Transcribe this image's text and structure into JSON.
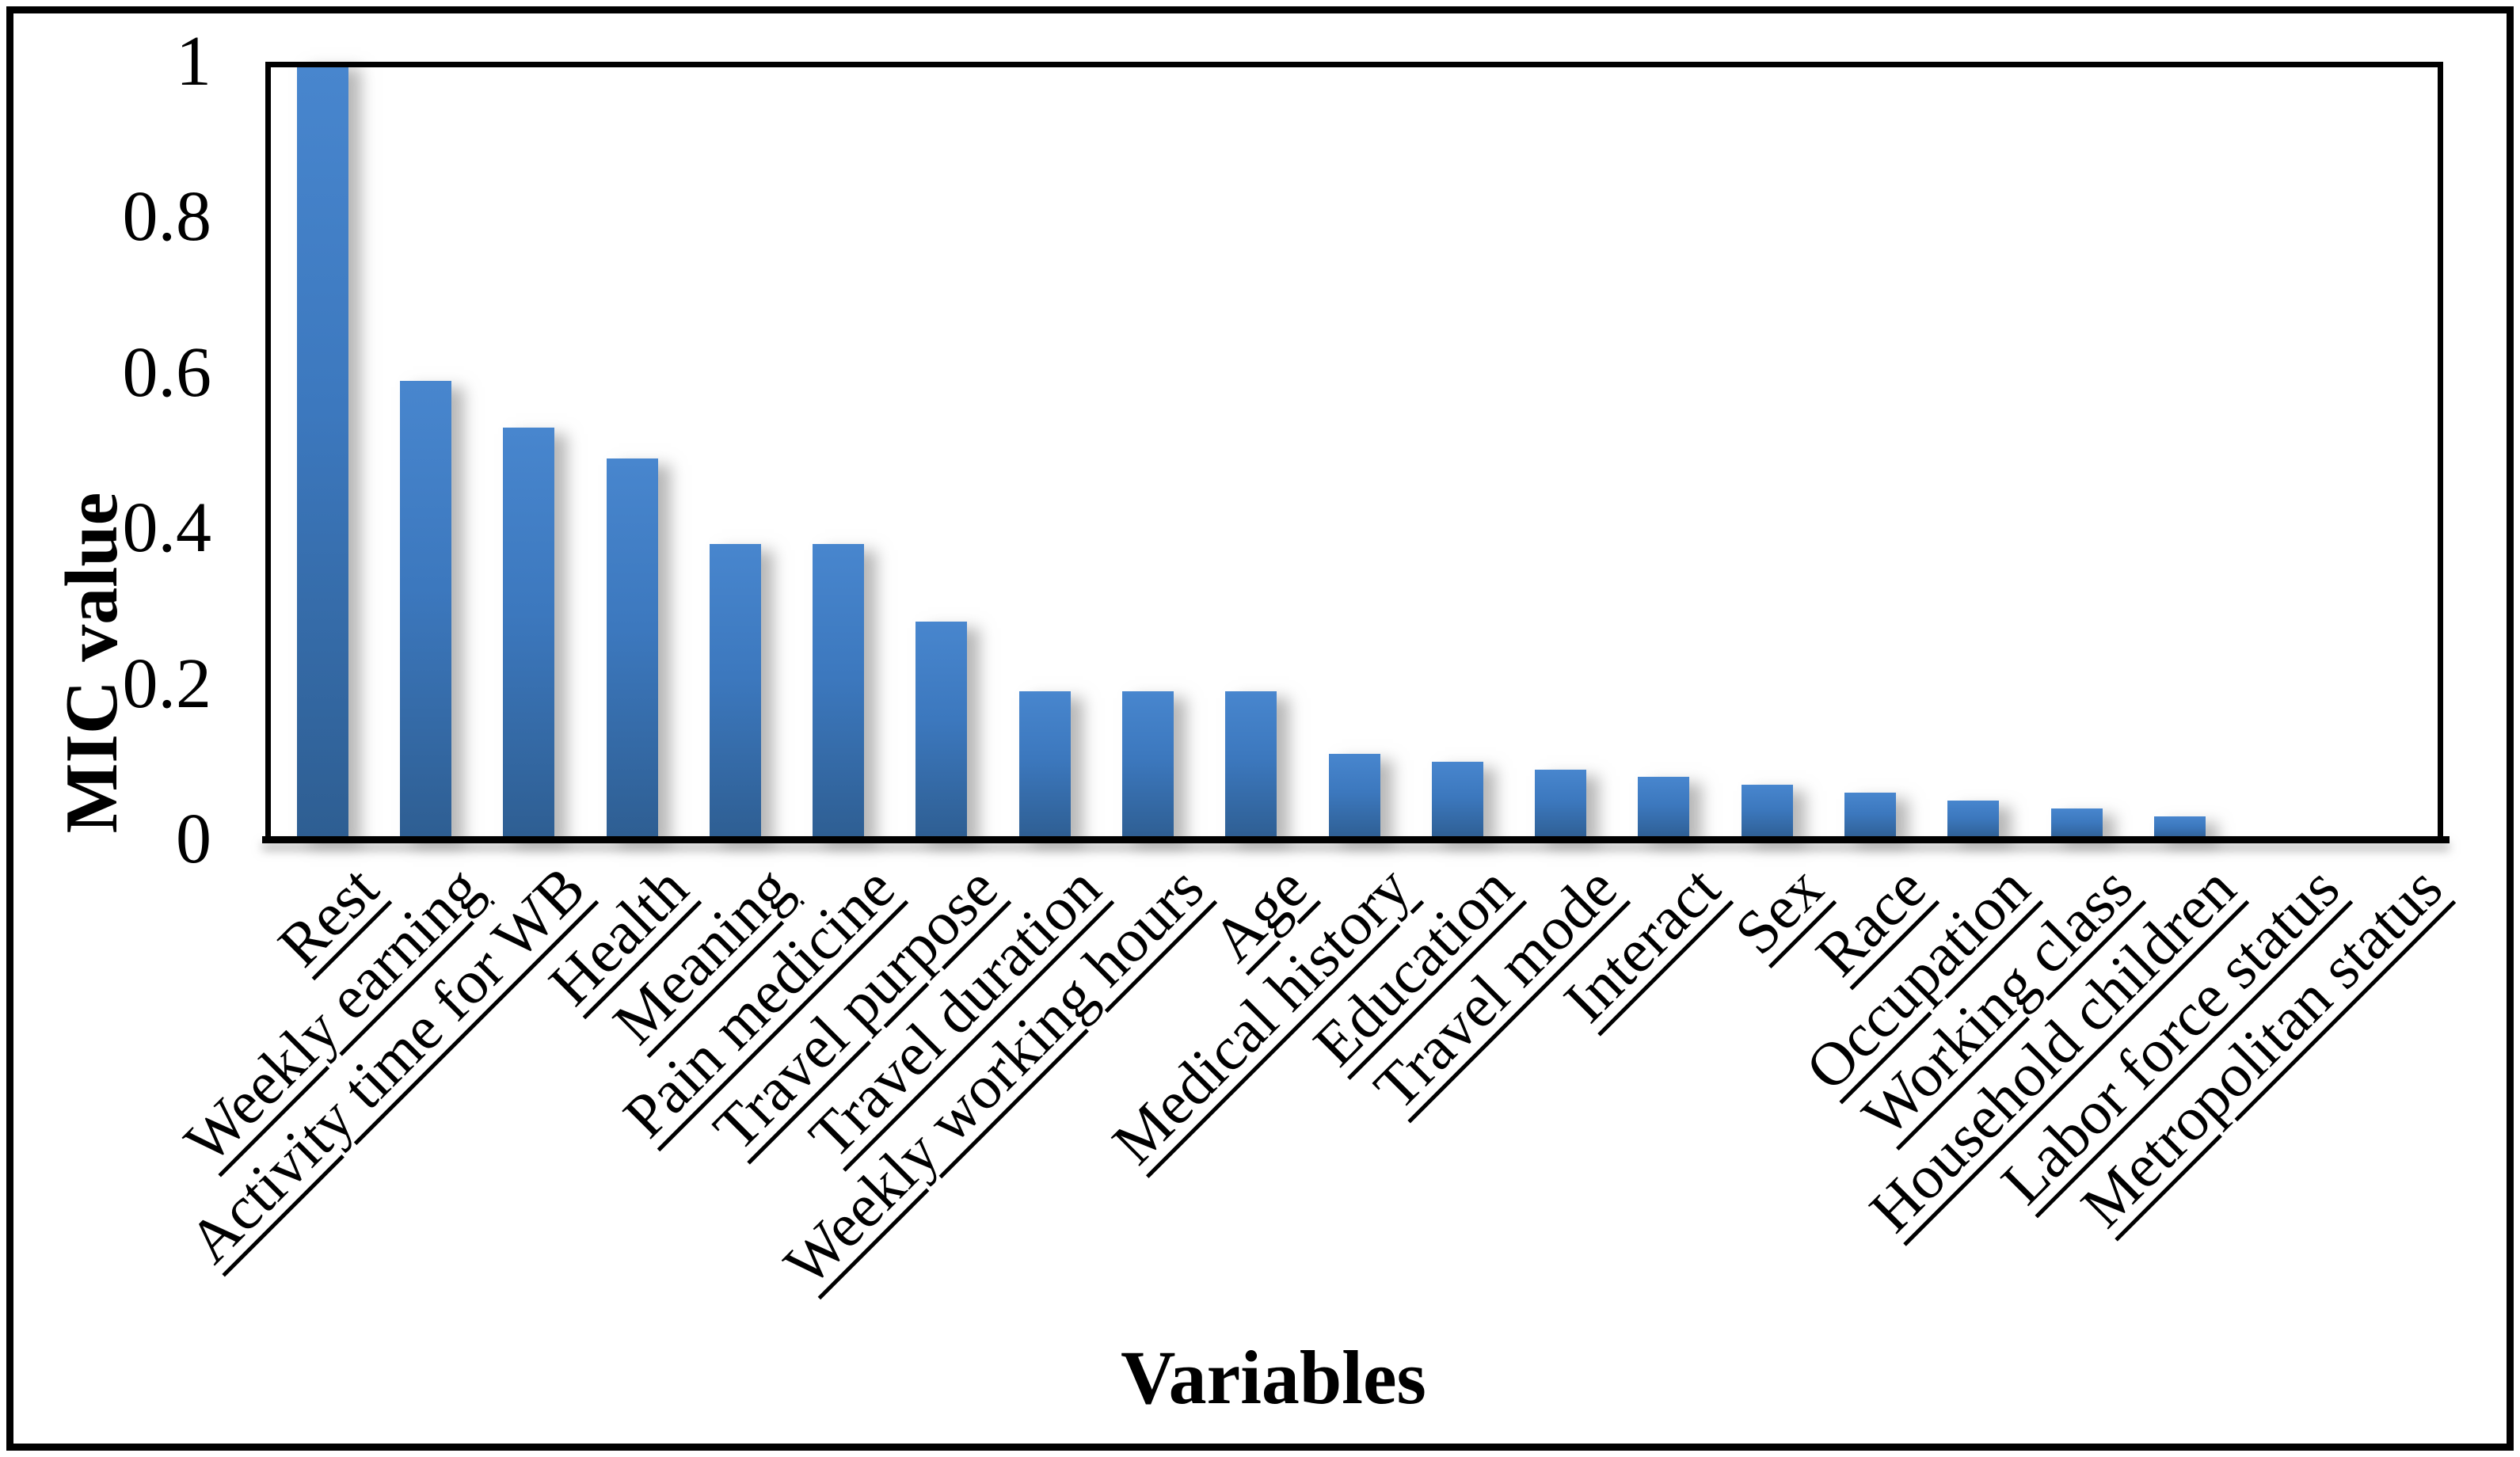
{
  "figure": {
    "background_color": "#ffffff",
    "border_color": "#000000",
    "bar_color_top": "#4886CE",
    "bar_color_bottom": "#2E5E92",
    "text_color": "#000000"
  },
  "chart_data": {
    "type": "bar",
    "title": "",
    "xlabel": "Variables",
    "ylabel": "MIC value",
    "categories": [
      "Rest",
      "Weekly earning",
      "Activity time for WB",
      "Health",
      "Meaning",
      "Pain medicine",
      "Travel purpose",
      "Travel duration",
      "Weekly working hours",
      "Age",
      "Medical history",
      "Education",
      "Travel mode",
      "Interact",
      "Sex",
      "Race",
      "Occupation",
      "Working class",
      "Household children",
      "Labor force status",
      "Metropolitan status"
    ],
    "values": [
      1.0,
      0.59,
      0.53,
      0.49,
      0.38,
      0.38,
      0.28,
      0.19,
      0.19,
      0.19,
      0.11,
      0.1,
      0.09,
      0.08,
      0.07,
      0.06,
      0.05,
      0.04,
      0.03,
      0,
      0
    ],
    "ylim": [
      0,
      1
    ],
    "yticks": [
      0,
      0.2,
      0.4,
      0.6,
      0.8,
      1
    ],
    "ytick_labels": [
      "0",
      "0.2",
      "0.4",
      "0.6",
      "0.8",
      "1"
    ],
    "grid": false,
    "legend": null,
    "x_labels_rotation_deg": 45,
    "x_labels_underlined": true
  }
}
